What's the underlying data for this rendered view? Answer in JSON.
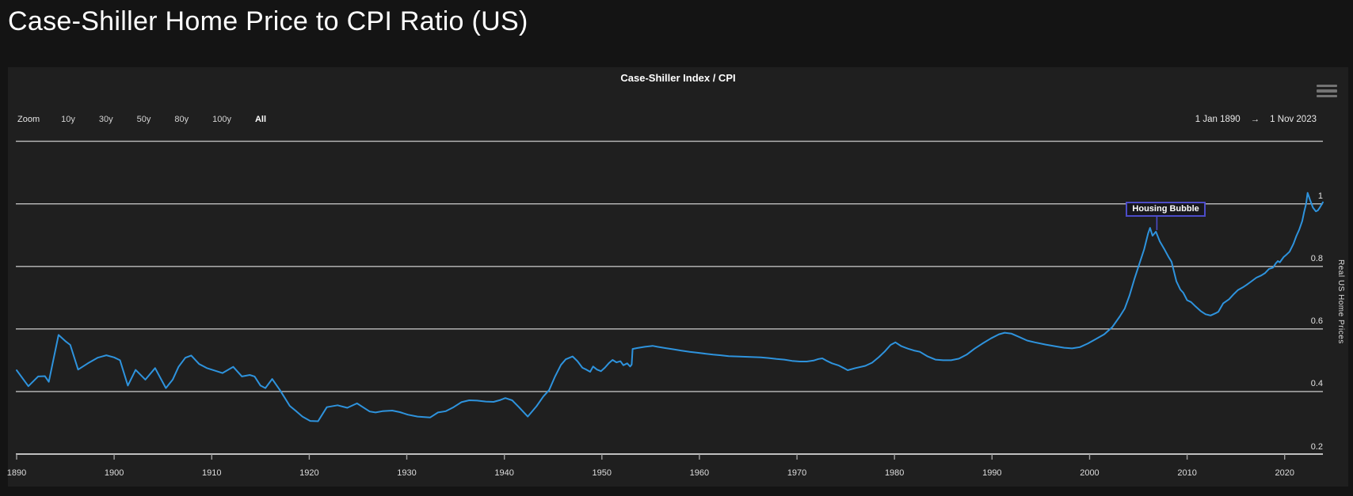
{
  "page": {
    "title": "Case-Shiller Home Price to CPI Ratio (US)"
  },
  "chart": {
    "title": "Case-Shiller Index / CPI",
    "range_selector": {
      "zoom_label": "Zoom",
      "buttons": [
        "10y",
        "30y",
        "50y",
        "80y",
        "100y",
        "All"
      ],
      "selected": "All"
    },
    "date_range": {
      "from": "1 Jan 1890",
      "arrow": "→",
      "to": "1 Nov 2023"
    },
    "annotation": {
      "label": "Housing Bubble",
      "x_year": 2006.9,
      "y_value": 0.911
    },
    "icons": {
      "context_menu": "hamburger-menu-icon"
    },
    "colors": {
      "page_bg": "#141414",
      "chart_bg": "#1f1f1f",
      "series_line": "#2e93dd",
      "annotation_border": "#4c4cc8",
      "gridline": "#bfbfbf",
      "tick": "#9f9f9f",
      "text": "#ffffff"
    }
  },
  "chart_data": {
    "type": "line",
    "title": "Case-Shiller Index / CPI",
    "xlabel": "",
    "ylabel_right": "Real US Home Prices",
    "xlim": [
      1890,
      2023.92
    ],
    "ylim": [
      0.2,
      1.2
    ],
    "grid": true,
    "legend": "none",
    "x_ticks": [
      1890,
      1900,
      1910,
      1920,
      1930,
      1940,
      1950,
      1960,
      1970,
      1980,
      1990,
      2000,
      2010,
      2020
    ],
    "y_gridlines": [
      0.2,
      0.4,
      0.6,
      0.8,
      1,
      1.2
    ],
    "y_tick_labels": [
      "0.2",
      "0.4",
      "0.6",
      "0.8",
      "1",
      ""
    ],
    "series": [
      {
        "name": "Case-Shiller Index / CPI",
        "color": "#2e93dd",
        "points": [
          [
            1890,
            0.468
          ],
          [
            1891.2,
            0.417
          ],
          [
            1892.2,
            0.448
          ],
          [
            1892.9,
            0.449
          ],
          [
            1893.3,
            0.431
          ],
          [
            1894.3,
            0.581
          ],
          [
            1895,
            0.561
          ],
          [
            1895.5,
            0.549
          ],
          [
            1896.3,
            0.47
          ],
          [
            1897.3,
            0.49
          ],
          [
            1898.3,
            0.508
          ],
          [
            1899.2,
            0.516
          ],
          [
            1900,
            0.509
          ],
          [
            1900.6,
            0.5
          ],
          [
            1901.4,
            0.419
          ],
          [
            1902.2,
            0.469
          ],
          [
            1903.2,
            0.438
          ],
          [
            1904.2,
            0.475
          ],
          [
            1905.3,
            0.411
          ],
          [
            1906,
            0.438
          ],
          [
            1906.6,
            0.479
          ],
          [
            1907.3,
            0.508
          ],
          [
            1907.9,
            0.515
          ],
          [
            1908.7,
            0.488
          ],
          [
            1909.5,
            0.475
          ],
          [
            1910.3,
            0.467
          ],
          [
            1911.1,
            0.459
          ],
          [
            1912.2,
            0.479
          ],
          [
            1913.1,
            0.448
          ],
          [
            1913.9,
            0.453
          ],
          [
            1914.4,
            0.448
          ],
          [
            1915,
            0.419
          ],
          [
            1915.5,
            0.411
          ],
          [
            1916.2,
            0.44
          ],
          [
            1917,
            0.404
          ],
          [
            1918,
            0.354
          ],
          [
            1918.7,
            0.336
          ],
          [
            1919.3,
            0.32
          ],
          [
            1920.1,
            0.306
          ],
          [
            1920.9,
            0.305
          ],
          [
            1921.8,
            0.35
          ],
          [
            1922.9,
            0.356
          ],
          [
            1923.9,
            0.348
          ],
          [
            1924.9,
            0.362
          ],
          [
            1925.5,
            0.35
          ],
          [
            1926.2,
            0.336
          ],
          [
            1926.8,
            0.333
          ],
          [
            1927.5,
            0.337
          ],
          [
            1928.5,
            0.339
          ],
          [
            1929.3,
            0.334
          ],
          [
            1930.1,
            0.326
          ],
          [
            1931.1,
            0.32
          ],
          [
            1932.4,
            0.317
          ],
          [
            1933.2,
            0.333
          ],
          [
            1934,
            0.337
          ],
          [
            1934.8,
            0.35
          ],
          [
            1935.6,
            0.366
          ],
          [
            1936.4,
            0.372
          ],
          [
            1937.2,
            0.371
          ],
          [
            1938.1,
            0.368
          ],
          [
            1938.9,
            0.367
          ],
          [
            1939.6,
            0.373
          ],
          [
            1940.1,
            0.379
          ],
          [
            1940.8,
            0.372
          ],
          [
            1941.5,
            0.35
          ],
          [
            1942.4,
            0.32
          ],
          [
            1943.3,
            0.353
          ],
          [
            1944,
            0.384
          ],
          [
            1944.6,
            0.405
          ],
          [
            1945.2,
            0.448
          ],
          [
            1945.8,
            0.485
          ],
          [
            1946.3,
            0.503
          ],
          [
            1947,
            0.512
          ],
          [
            1947.5,
            0.497
          ],
          [
            1948,
            0.476
          ],
          [
            1948.4,
            0.47
          ],
          [
            1948.8,
            0.463
          ],
          [
            1949.1,
            0.48
          ],
          [
            1949.5,
            0.47
          ],
          [
            1949.9,
            0.465
          ],
          [
            1950.3,
            0.476
          ],
          [
            1950.7,
            0.49
          ],
          [
            1951.1,
            0.501
          ],
          [
            1951.5,
            0.493
          ],
          [
            1951.9,
            0.497
          ],
          [
            1952.2,
            0.484
          ],
          [
            1952.6,
            0.49
          ],
          [
            1952.9,
            0.48
          ],
          [
            1953.05,
            0.486
          ],
          [
            1953.15,
            0.536
          ],
          [
            1953.6,
            0.539
          ],
          [
            1954.4,
            0.543
          ],
          [
            1955.2,
            0.546
          ],
          [
            1955.7,
            0.543
          ],
          [
            1956.5,
            0.539
          ],
          [
            1957.3,
            0.535
          ],
          [
            1958.1,
            0.531
          ],
          [
            1959,
            0.527
          ],
          [
            1959.8,
            0.524
          ],
          [
            1960.6,
            0.521
          ],
          [
            1961.4,
            0.518
          ],
          [
            1962.2,
            0.516
          ],
          [
            1963,
            0.513
          ],
          [
            1963.9,
            0.512
          ],
          [
            1964.7,
            0.511
          ],
          [
            1965.5,
            0.51
          ],
          [
            1966.3,
            0.509
          ],
          [
            1967.1,
            0.507
          ],
          [
            1967.9,
            0.504
          ],
          [
            1968.7,
            0.502
          ],
          [
            1969.5,
            0.498
          ],
          [
            1970.3,
            0.496
          ],
          [
            1971,
            0.496
          ],
          [
            1971.7,
            0.499
          ],
          [
            1972.2,
            0.504
          ],
          [
            1972.6,
            0.506
          ],
          [
            1973,
            0.499
          ],
          [
            1973.6,
            0.49
          ],
          [
            1974.3,
            0.483
          ],
          [
            1974.8,
            0.475
          ],
          [
            1975.2,
            0.468
          ],
          [
            1976,
            0.475
          ],
          [
            1977,
            0.482
          ],
          [
            1977.7,
            0.492
          ],
          [
            1978.4,
            0.51
          ],
          [
            1979,
            0.528
          ],
          [
            1979.6,
            0.549
          ],
          [
            1980.1,
            0.557
          ],
          [
            1980.7,
            0.545
          ],
          [
            1981.4,
            0.537
          ],
          [
            1982,
            0.531
          ],
          [
            1982.6,
            0.527
          ],
          [
            1983.4,
            0.512
          ],
          [
            1984.2,
            0.502
          ],
          [
            1985,
            0.5
          ],
          [
            1985.8,
            0.5
          ],
          [
            1986.6,
            0.505
          ],
          [
            1987.4,
            0.518
          ],
          [
            1988.2,
            0.537
          ],
          [
            1989,
            0.553
          ],
          [
            1989.9,
            0.57
          ],
          [
            1990.7,
            0.583
          ],
          [
            1991.3,
            0.588
          ],
          [
            1992,
            0.585
          ],
          [
            1992.8,
            0.574
          ],
          [
            1993.6,
            0.563
          ],
          [
            1994.4,
            0.557
          ],
          [
            1995.5,
            0.55
          ],
          [
            1996.6,
            0.544
          ],
          [
            1997.4,
            0.54
          ],
          [
            1998.2,
            0.538
          ],
          [
            1999,
            0.542
          ],
          [
            1999.8,
            0.553
          ],
          [
            2000.6,
            0.567
          ],
          [
            2001.5,
            0.583
          ],
          [
            2002.3,
            0.605
          ],
          [
            2003.1,
            0.64
          ],
          [
            2003.6,
            0.665
          ],
          [
            2004.1,
            0.707
          ],
          [
            2004.6,
            0.76
          ],
          [
            2005.1,
            0.808
          ],
          [
            2005.6,
            0.855
          ],
          [
            2006,
            0.905
          ],
          [
            2006.2,
            0.923
          ],
          [
            2006.45,
            0.898
          ],
          [
            2006.8,
            0.911
          ],
          [
            2007.2,
            0.88
          ],
          [
            2007.7,
            0.853
          ],
          [
            2008.1,
            0.83
          ],
          [
            2008.4,
            0.815
          ],
          [
            2008.9,
            0.752
          ],
          [
            2009.3,
            0.726
          ],
          [
            2009.6,
            0.716
          ],
          [
            2010,
            0.692
          ],
          [
            2010.4,
            0.686
          ],
          [
            2010.9,
            0.671
          ],
          [
            2011.4,
            0.657
          ],
          [
            2011.9,
            0.647
          ],
          [
            2012.4,
            0.643
          ],
          [
            2012.9,
            0.65
          ],
          [
            2013.2,
            0.655
          ],
          [
            2013.7,
            0.682
          ],
          [
            2014.3,
            0.695
          ],
          [
            2014.8,
            0.712
          ],
          [
            2015.2,
            0.724
          ],
          [
            2015.7,
            0.733
          ],
          [
            2016.1,
            0.741
          ],
          [
            2016.5,
            0.75
          ],
          [
            2017.1,
            0.764
          ],
          [
            2017.6,
            0.771
          ],
          [
            2018,
            0.779
          ],
          [
            2018.4,
            0.792
          ],
          [
            2018.8,
            0.796
          ],
          [
            2019.1,
            0.81
          ],
          [
            2019.3,
            0.817
          ],
          [
            2019.5,
            0.813
          ],
          [
            2019.9,
            0.83
          ],
          [
            2020.2,
            0.838
          ],
          [
            2020.5,
            0.847
          ],
          [
            2020.9,
            0.872
          ],
          [
            2021.2,
            0.897
          ],
          [
            2021.5,
            0.918
          ],
          [
            2021.8,
            0.945
          ],
          [
            2022,
            0.975
          ],
          [
            2022.2,
            1.0
          ],
          [
            2022.35,
            1.035
          ],
          [
            2022.6,
            1.013
          ],
          [
            2022.9,
            0.988
          ],
          [
            2023.2,
            0.976
          ],
          [
            2023.4,
            0.979
          ],
          [
            2023.6,
            0.988
          ],
          [
            2023.92,
            1.005
          ]
        ]
      }
    ]
  }
}
